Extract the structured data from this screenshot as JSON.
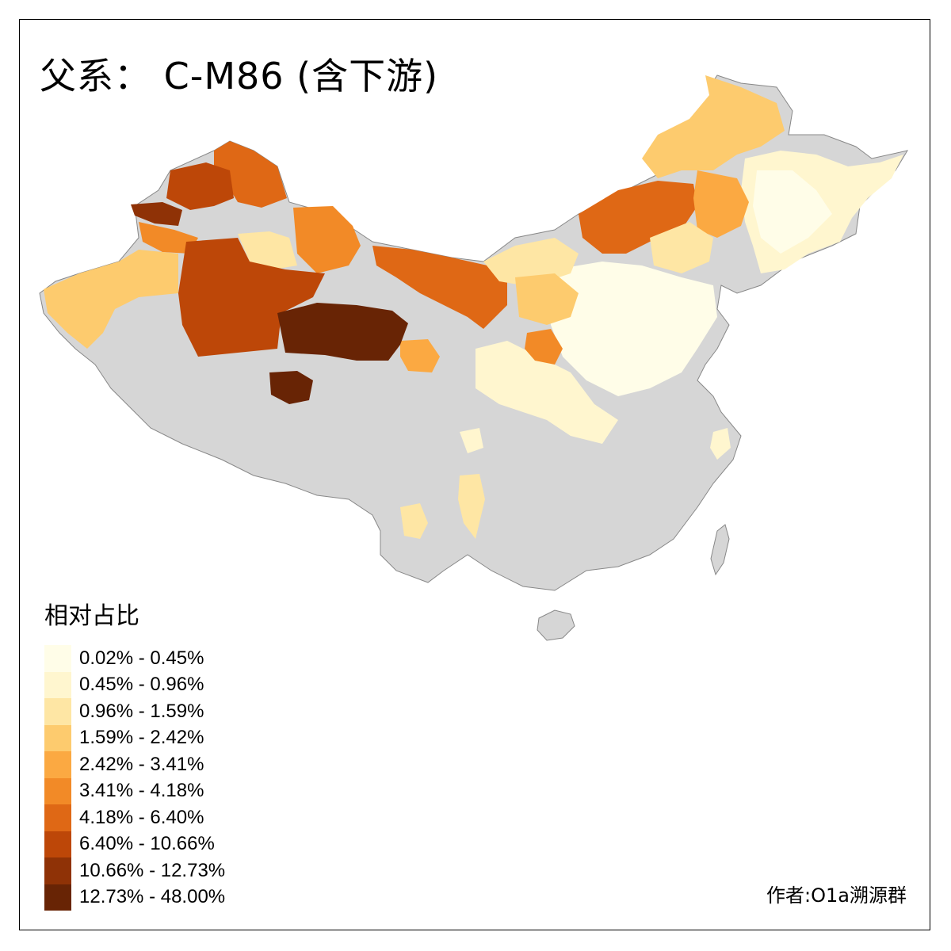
{
  "title": "父系： C-M86 (含下游)",
  "legend": {
    "title": "相对占比",
    "items": [
      {
        "label": "0.02% - 0.45%",
        "color": "#fffde8"
      },
      {
        "label": "0.45% - 0.96%",
        "color": "#fff6cf"
      },
      {
        "label": "0.96% - 1.59%",
        "color": "#fee6a4"
      },
      {
        "label": "1.59% - 2.42%",
        "color": "#fdcb6e"
      },
      {
        "label": "2.42% - 3.41%",
        "color": "#fba942"
      },
      {
        "label": "3.41% - 4.18%",
        "color": "#f28a27"
      },
      {
        "label": "4.18% - 6.40%",
        "color": "#df6815"
      },
      {
        "label": "6.40% - 10.66%",
        "color": "#bd4708"
      },
      {
        "label": "10.66% - 12.73%",
        "color": "#8f3206"
      },
      {
        "label": "12.73% - 48.00%",
        "color": "#682405"
      }
    ]
  },
  "no_data_color": "#d6d6d6",
  "credit": "作者:O1a溯源群"
}
